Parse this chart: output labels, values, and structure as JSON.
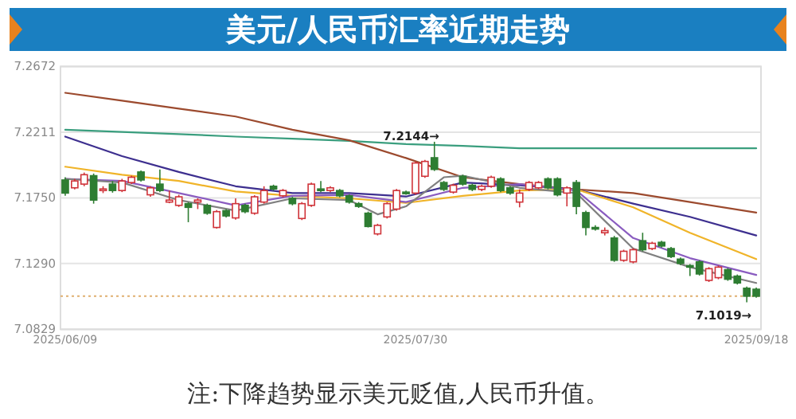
{
  "chart_data": {
    "type": "candlestick",
    "title": "美元/人民币汇率近期走势",
    "categories": [
      "2025/06/09",
      null,
      null,
      null,
      null,
      null,
      null,
      null,
      null,
      null,
      null,
      null,
      null,
      null,
      null,
      null,
      null,
      null,
      null,
      null,
      null,
      null,
      null,
      null,
      null,
      null,
      null,
      null,
      null,
      null,
      null,
      null,
      null,
      null,
      null,
      null,
      null,
      "2025/07/30",
      null,
      null,
      null,
      null,
      null,
      null,
      null,
      null,
      null,
      null,
      null,
      null,
      null,
      null,
      null,
      null,
      null,
      null,
      null,
      null,
      null,
      null,
      null,
      null,
      null,
      null,
      null,
      null,
      null,
      null,
      null,
      null,
      null,
      null,
      null,
      "2025/09/18"
    ],
    "ohlc": [
      [
        7.1876,
        7.1895,
        7.1765,
        7.1784
      ],
      [
        7.1821,
        7.1884,
        7.181,
        7.1869
      ],
      [
        7.1847,
        7.1928,
        7.1832,
        7.1913
      ],
      [
        7.1906,
        7.1921,
        7.171,
        7.1735
      ],
      [
        7.1802,
        7.1832,
        7.1784,
        7.1813
      ],
      [
        7.1847,
        7.1869,
        7.1787,
        7.1802
      ],
      [
        7.1802,
        7.1884,
        7.1791,
        7.1869
      ],
      [
        7.1858,
        7.1906,
        7.1847,
        7.1895
      ],
      [
        7.1932,
        7.1943,
        7.1865,
        7.1876
      ],
      [
        7.1772,
        7.1832,
        7.1758,
        7.1821
      ],
      [
        7.1847,
        7.195,
        7.1791,
        7.1802
      ],
      [
        7.1721,
        7.1802,
        7.1713,
        7.1735
      ],
      [
        7.1698,
        7.1772,
        7.1687,
        7.1758
      ],
      [
        7.171,
        7.1721,
        7.158,
        7.1684
      ],
      [
        7.1721,
        7.1747,
        7.1672,
        7.1735
      ],
      [
        7.1698,
        7.171,
        7.1632,
        7.1643
      ],
      [
        7.1543,
        7.1665,
        7.1535,
        7.1654
      ],
      [
        7.1661,
        7.1672,
        7.1613,
        7.1624
      ],
      [
        7.161,
        7.1747,
        7.1598,
        7.171
      ],
      [
        7.1698,
        7.171,
        7.1643,
        7.1654
      ],
      [
        7.1643,
        7.1769,
        7.1632,
        7.1758
      ],
      [
        7.1721,
        7.1832,
        7.171,
        7.1802
      ],
      [
        7.1832,
        7.1843,
        7.1802,
        7.1813
      ],
      [
        7.1765,
        7.1813,
        7.1754,
        7.1802
      ],
      [
        7.1747,
        7.1758,
        7.1698,
        7.171
      ],
      [
        7.1606,
        7.1721,
        7.1595,
        7.171
      ],
      [
        7.1698,
        7.1858,
        7.1687,
        7.1847
      ],
      [
        7.1813,
        7.1869,
        7.1791,
        7.1802
      ],
      [
        7.1802,
        7.1832,
        7.1791,
        7.1821
      ],
      [
        7.1802,
        7.1813,
        7.1754,
        7.1765
      ],
      [
        7.1765,
        7.1776,
        7.171,
        7.1721
      ],
      [
        7.171,
        7.1721,
        7.168,
        7.1691
      ],
      [
        7.1643,
        7.1654,
        7.1543,
        7.155
      ],
      [
        7.1498,
        7.1569,
        7.1487,
        7.1558
      ],
      [
        7.1617,
        7.1721,
        7.1606,
        7.171
      ],
      [
        7.1672,
        7.1813,
        7.1661,
        7.1802
      ],
      [
        7.1791,
        7.1802,
        7.1772,
        7.1784
      ],
      [
        7.1784,
        7.2006,
        7.1772,
        7.1995
      ],
      [
        7.1902,
        7.2017,
        7.1891,
        7.2006
      ],
      [
        7.2032,
        7.2144,
        7.1939,
        7.195
      ],
      [
        7.1858,
        7.1869,
        7.1798,
        7.181
      ],
      [
        7.1791,
        7.185,
        7.178,
        7.1839
      ],
      [
        7.1902,
        7.1913,
        7.1835,
        7.1847
      ],
      [
        7.1839,
        7.185,
        7.1798,
        7.181
      ],
      [
        7.181,
        7.1843,
        7.1798,
        7.1832
      ],
      [
        7.1832,
        7.1906,
        7.1821,
        7.1895
      ],
      [
        7.1884,
        7.1895,
        7.1791,
        7.1802
      ],
      [
        7.1821,
        7.1832,
        7.1772,
        7.1784
      ],
      [
        7.1721,
        7.181,
        7.1684,
        7.1784
      ],
      [
        7.181,
        7.1869,
        7.1798,
        7.1858
      ],
      [
        7.1821,
        7.1869,
        7.181,
        7.1858
      ],
      [
        7.1884,
        7.1895,
        7.181,
        7.1821
      ],
      [
        7.1884,
        7.1895,
        7.1761,
        7.1772
      ],
      [
        7.1784,
        7.1832,
        7.1691,
        7.1821
      ],
      [
        7.1858,
        7.1876,
        7.1635,
        7.1691
      ],
      [
        7.1647,
        7.1661,
        7.1487,
        7.1543
      ],
      [
        7.1543,
        7.1558,
        7.1521,
        7.1532
      ],
      [
        7.1506,
        7.1543,
        7.1487,
        7.1521
      ],
      [
        7.1469,
        7.1484,
        7.1302,
        7.1313
      ],
      [
        7.1313,
        7.1387,
        7.1302,
        7.1376
      ],
      [
        7.1302,
        7.1398,
        7.1291,
        7.1387
      ],
      [
        7.145,
        7.1506,
        7.1376,
        7.1387
      ],
      [
        7.1395,
        7.1443,
        7.1384,
        7.1432
      ],
      [
        7.1439,
        7.145,
        7.1402,
        7.1413
      ],
      [
        7.1395,
        7.1406,
        7.1328,
        7.1339
      ],
      [
        7.1321,
        7.1332,
        7.128,
        7.1291
      ],
      [
        7.1276,
        7.1287,
        7.1202,
        7.1265
      ],
      [
        7.1302,
        7.1313,
        7.1206,
        7.1217
      ],
      [
        7.1172,
        7.1265,
        7.1161,
        7.1254
      ],
      [
        7.1191,
        7.1276,
        7.118,
        7.1265
      ],
      [
        7.1247,
        7.1258,
        7.1169,
        7.118
      ],
      [
        7.1202,
        7.1213,
        7.1143,
        7.1154
      ],
      [
        7.1117,
        7.1128,
        7.1019,
        7.1061
      ],
      [
        7.111,
        7.1121,
        7.105,
        7.1061
      ]
    ],
    "series": [
      {
        "type": "line",
        "color": "#3a9e7e",
        "values": [
          7.2228,
          null,
          null,
          null,
          null,
          null,
          7.2213,
          null,
          null,
          null,
          null,
          null,
          7.2198,
          null,
          null,
          null,
          null,
          null,
          7.218,
          null,
          null,
          null,
          null,
          null,
          7.2165,
          null,
          null,
          null,
          null,
          null,
          7.215,
          null,
          null,
          null,
          null,
          null,
          7.2128,
          null,
          null,
          null,
          null,
          null,
          7.2115,
          null,
          null,
          null,
          null,
          null,
          7.2098,
          null,
          null,
          null,
          null,
          null,
          7.2098,
          null,
          null,
          null,
          null,
          null,
          7.2098,
          null,
          null,
          null,
          null,
          null,
          7.2098,
          null,
          null,
          null,
          null,
          null,
          null,
          7.2098
        ]
      },
      {
        "type": "line",
        "color": "#9c4a2e",
        "values": [
          7.2487,
          null,
          null,
          null,
          null,
          null,
          7.2432,
          null,
          null,
          null,
          null,
          null,
          7.2376,
          null,
          null,
          null,
          null,
          null,
          7.2321,
          null,
          null,
          null,
          null,
          null,
          7.2228,
          null,
          null,
          null,
          null,
          null,
          7.2154,
          null,
          null,
          null,
          null,
          null,
          7.203,
          null,
          null,
          null,
          null,
          null,
          7.1895,
          null,
          null,
          null,
          null,
          null,
          7.1847,
          null,
          null,
          null,
          null,
          null,
          7.181,
          null,
          null,
          null,
          null,
          null,
          7.1784,
          null,
          null,
          null,
          null,
          null,
          7.1721,
          null,
          null,
          null,
          null,
          null,
          null,
          7.1647
        ]
      },
      {
        "type": "line",
        "color": "#3d2f8f",
        "values": [
          7.218,
          null,
          null,
          null,
          null,
          null,
          7.2043,
          null,
          null,
          null,
          null,
          null,
          7.1932,
          null,
          null,
          null,
          null,
          null,
          7.1832,
          null,
          null,
          null,
          null,
          null,
          7.1784,
          null,
          null,
          null,
          null,
          null,
          7.1784,
          null,
          null,
          null,
          null,
          null,
          7.176,
          null,
          null,
          null,
          null,
          null,
          7.1858,
          null,
          null,
          null,
          null,
          null,
          7.1839,
          null,
          null,
          null,
          null,
          null,
          7.181,
          null,
          null,
          null,
          null,
          null,
          7.171,
          null,
          null,
          null,
          null,
          null,
          7.1617,
          null,
          null,
          null,
          null,
          null,
          null,
          7.1487
        ]
      },
      {
        "type": "line",
        "color": "#f0b429",
        "values": [
          7.1969,
          null,
          null,
          null,
          null,
          null,
          7.1913,
          null,
          null,
          null,
          null,
          null,
          7.1869,
          null,
          null,
          null,
          null,
          null,
          7.1795,
          null,
          null,
          null,
          null,
          null,
          7.1765,
          null,
          null,
          null,
          null,
          null,
          7.1747,
          null,
          null,
          null,
          null,
          null,
          7.1715,
          null,
          null,
          null,
          null,
          null,
          7.1765,
          null,
          null,
          null,
          null,
          null,
          7.1802,
          null,
          null,
          null,
          null,
          null,
          7.181,
          null,
          null,
          null,
          null,
          null,
          7.1684,
          null,
          null,
          null,
          null,
          null,
          7.1506,
          null,
          null,
          null,
          null,
          null,
          null,
          7.1321
        ]
      },
      {
        "type": "line",
        "color": "#8a5cc0",
        "values": [
          7.1884,
          null,
          null,
          null,
          null,
          null,
          7.1869,
          null,
          null,
          null,
          null,
          null,
          7.1784,
          null,
          null,
          null,
          null,
          null,
          7.1698,
          null,
          null,
          null,
          null,
          null,
          7.1765,
          null,
          null,
          null,
          null,
          null,
          7.1772,
          null,
          null,
          null,
          null,
          null,
          7.1721,
          null,
          null,
          null,
          null,
          null,
          7.1821,
          null,
          null,
          null,
          null,
          null,
          7.1847,
          null,
          null,
          null,
          null,
          null,
          7.1802,
          null,
          null,
          null,
          null,
          null,
          7.1469,
          null,
          null,
          null,
          null,
          null,
          7.1328,
          null,
          null,
          null,
          null,
          null,
          null,
          7.121
        ]
      },
      {
        "type": "line",
        "color": "#808080",
        "values": [
          7.1884,
          null,
          null,
          null,
          null,
          null,
          7.1858,
          null,
          null,
          null,
          null,
          null,
          7.1735,
          null,
          null,
          null,
          null,
          null,
          7.1661,
          null,
          null,
          null,
          null,
          null,
          7.1747,
          null,
          null,
          null,
          null,
          null,
          7.1735,
          null,
          null,
          7.1635,
          null,
          null,
          7.1691,
          null,
          null,
          null,
          7.1895,
          null,
          7.1906,
          null,
          null,
          null,
          null,
          null,
          7.1821,
          null,
          null,
          null,
          null,
          null,
          7.1784,
          null,
          null,
          null,
          null,
          null,
          7.1395,
          null,
          null,
          null,
          null,
          null,
          7.1265,
          null,
          null,
          null,
          null,
          null,
          null,
          7.1154
        ]
      }
    ],
    "ylim": [
      7.0829,
      7.2672
    ],
    "yticks": [
      7.2672,
      7.2211,
      {
        "value": 7.175,
        "label": "7.1750"
      },
      {
        "value": 7.129,
        "label": "7.1290"
      },
      7.0829
    ],
    "grid": "y",
    "ref_lines": [
      {
        "axis": "y",
        "value": 7.1061,
        "color": "#e0b070",
        "line_style": "dotted"
      }
    ],
    "annotations": [
      {
        "text": "7.2144→",
        "y": 7.2144
      },
      {
        "text": "7.1019→",
        "y": 7.1019
      },
      "注:下降趋势显示美元贬值,人民币升值。"
    ]
  }
}
